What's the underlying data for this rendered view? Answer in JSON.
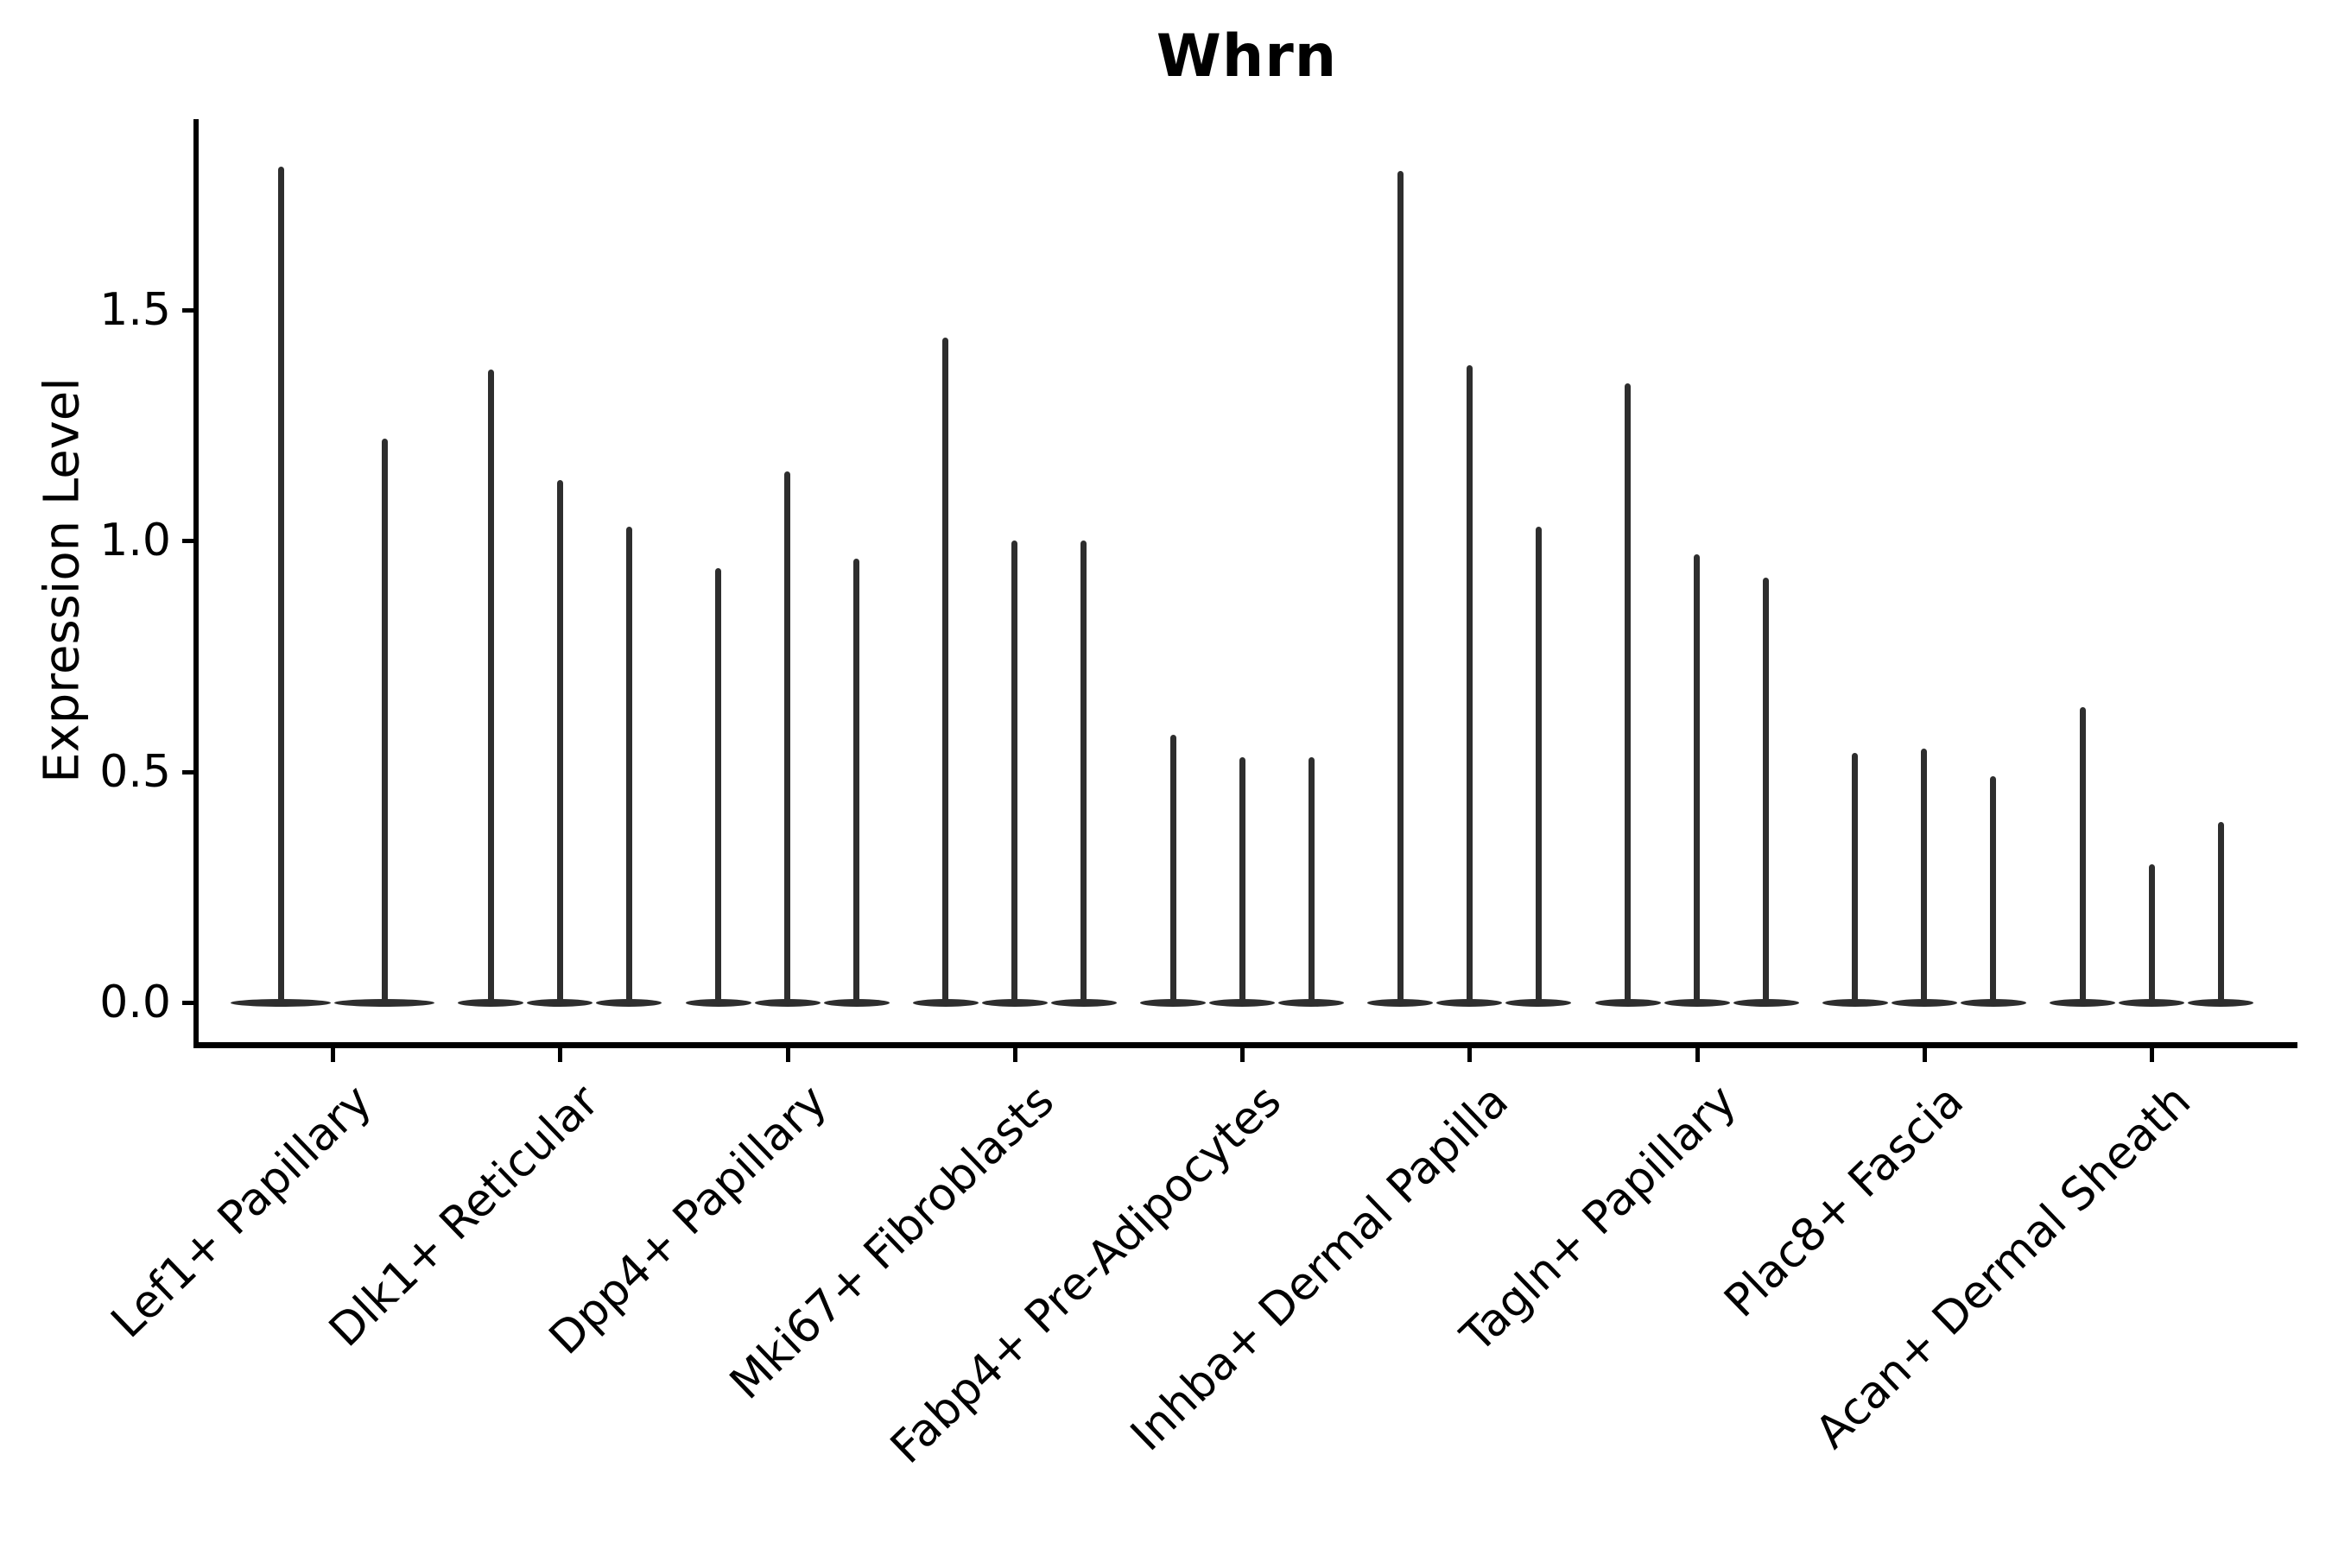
{
  "figure": {
    "title": "Whrn",
    "background_color": "#ffffff",
    "axis_color": "#000000"
  },
  "chart_data": {
    "type": "violin",
    "title": "Whrn",
    "xlabel": "",
    "ylabel": "Expression Level",
    "ylim": [
      -0.07,
      1.91
    ],
    "yticks": [
      0.0,
      0.5,
      1.0,
      1.5
    ],
    "yticklabels": [
      "0.0",
      "0.5",
      "1.0",
      "1.5"
    ],
    "grid": false,
    "legend": "none",
    "violin_color": "#2e2e2e",
    "violin_style": "needle-thin violins: flat bulge at 0 with a thin spike up to the max expression value",
    "categories": [
      "Lef1+ Papillary",
      "Dlk1+ Reticular",
      "Dpp4+ Papillary",
      "Mki67+ Fibroblasts",
      "Fabp4+ Pre-Adipocytes",
      "Inhba+ Dermal Papilla",
      "Tagln+ Papillary",
      "Plac8+ Fascia",
      "Acan+ Dermal Sheath"
    ],
    "groups": [
      {
        "category": "Lef1+ Papillary",
        "violin_maxima": [
          1.81,
          1.22
        ]
      },
      {
        "category": "Dlk1+ Reticular",
        "violin_maxima": [
          1.37,
          1.13,
          1.03
        ]
      },
      {
        "category": "Dpp4+ Papillary",
        "violin_maxima": [
          0.94,
          1.15,
          0.96
        ]
      },
      {
        "category": "Mki67+ Fibroblasts",
        "violin_maxima": [
          1.44,
          1.0,
          1.0
        ]
      },
      {
        "category": "Fabp4+ Pre-Adipocytes",
        "violin_maxima": [
          0.58,
          0.53,
          0.53
        ]
      },
      {
        "category": "Inhba+ Dermal Papilla",
        "violin_maxima": [
          1.8,
          1.38,
          1.03
        ]
      },
      {
        "category": "Tagln+ Papillary",
        "violin_maxima": [
          1.34,
          0.97,
          0.92
        ]
      },
      {
        "category": "Plac8+ Fascia",
        "violin_maxima": [
          0.54,
          0.55,
          0.49
        ]
      },
      {
        "category": "Acan+ Dermal Sheath",
        "violin_maxima": [
          0.64,
          0.3,
          0.39
        ]
      }
    ]
  }
}
